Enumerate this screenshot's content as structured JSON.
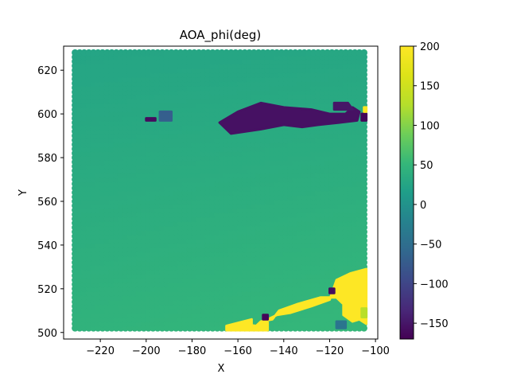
{
  "chart_data": {
    "type": "heatmap",
    "title": "AOA_phi(deg)",
    "xlabel": "X",
    "ylabel": "Y",
    "xlim": [
      -236,
      -99
    ],
    "ylim": [
      497,
      631
    ],
    "x_ticks": [
      -220,
      -200,
      -180,
      -160,
      -140,
      -120,
      -100
    ],
    "y_ticks": [
      500,
      520,
      540,
      560,
      580,
      600,
      620
    ],
    "x_tick_labels": [
      "−220",
      "−200",
      "−180",
      "−160",
      "−140",
      "−120",
      "−100"
    ],
    "y_tick_labels": [
      "500",
      "520",
      "540",
      "560",
      "580",
      "600",
      "620"
    ],
    "grid": false,
    "colormap": "viridis",
    "colorbar": {
      "range": [
        -170,
        200
      ],
      "ticks": [
        -150,
        -100,
        -50,
        0,
        50,
        100,
        150,
        200
      ],
      "tick_labels": [
        "−150",
        "−100",
        "−50",
        "0",
        "50",
        "100",
        "150",
        "200"
      ]
    },
    "grid_extent": {
      "x": [
        -231,
        -104
      ],
      "y": [
        502,
        629
      ],
      "step": 2
    },
    "background_field": {
      "description_values": {
        "top_left": 25,
        "top_right": 28,
        "bottom_left": 45,
        "bottom_right": 52
      }
    },
    "regions": [
      {
        "value": -155,
        "polygon": [
          [
            -160,
            601
          ],
          [
            -150,
            605
          ],
          [
            -140,
            603
          ],
          [
            -128,
            602
          ],
          [
            -120,
            600
          ],
          [
            -113,
            600
          ],
          [
            -110,
            603
          ],
          [
            -107,
            601
          ],
          [
            -108,
            597
          ],
          [
            -116,
            596
          ],
          [
            -125,
            595
          ],
          [
            -132,
            594
          ],
          [
            -140,
            595
          ],
          [
            -150,
            593
          ],
          [
            -163,
            591
          ],
          [
            -168,
            596
          ]
        ]
      },
      {
        "value": -150,
        "polygon": [
          [
            -118,
            605
          ],
          [
            -112,
            605
          ],
          [
            -110,
            602
          ],
          [
            -118,
            602
          ]
        ]
      },
      {
        "value": -70,
        "polygon": [
          [
            -194,
            601
          ],
          [
            -189,
            601
          ],
          [
            -189,
            597
          ],
          [
            -194,
            597
          ]
        ]
      },
      {
        "value": -160,
        "polygon": [
          [
            -200,
            598
          ],
          [
            -196,
            598
          ],
          [
            -196,
            597
          ],
          [
            -200,
            597
          ]
        ]
      },
      {
        "value": -165,
        "polygon": [
          [
            -106,
            600
          ],
          [
            -104,
            600
          ],
          [
            -104,
            597
          ],
          [
            -106,
            597
          ]
        ]
      },
      {
        "value": 195,
        "polygon": [
          [
            -105,
            603
          ],
          [
            -104,
            603
          ],
          [
            -104,
            601
          ],
          [
            -105,
            601
          ]
        ]
      },
      {
        "value": 200,
        "polygon": [
          [
            -104,
            529
          ],
          [
            -111,
            527
          ],
          [
            -117,
            524
          ],
          [
            -120,
            515
          ],
          [
            -128,
            512
          ],
          [
            -137,
            509
          ],
          [
            -143,
            508
          ],
          [
            -147,
            506
          ],
          [
            -147,
            501
          ],
          [
            -164,
            501
          ],
          [
            -160,
            504
          ],
          [
            -152,
            503
          ],
          [
            -150,
            505
          ],
          [
            -145,
            506
          ],
          [
            -142,
            510
          ],
          [
            -134,
            513
          ],
          [
            -124,
            516
          ],
          [
            -117,
            516
          ],
          [
            -114,
            513
          ],
          [
            -114,
            508
          ],
          [
            -110,
            505
          ],
          [
            -107,
            506
          ],
          [
            -104,
            504
          ]
        ]
      },
      {
        "value": 200,
        "polygon": [
          [
            -165,
            501
          ],
          [
            -154,
            501
          ],
          [
            -154,
            506
          ],
          [
            -165,
            503
          ]
        ]
      },
      {
        "value": 130,
        "polygon": [
          [
            -106,
            511
          ],
          [
            -104,
            511
          ],
          [
            -104,
            507
          ],
          [
            -106,
            507
          ]
        ]
      },
      {
        "value": -40,
        "polygon": [
          [
            -117,
            505
          ],
          [
            -113,
            505
          ],
          [
            -113,
            502
          ],
          [
            -117,
            502
          ]
        ]
      },
      {
        "value": -160,
        "polygon": [
          [
            -120,
            520
          ],
          [
            -118,
            520
          ],
          [
            -118,
            518
          ],
          [
            -120,
            518
          ]
        ]
      },
      {
        "value": -165,
        "polygon": [
          [
            -149,
            508
          ],
          [
            -147,
            508
          ],
          [
            -147,
            506
          ],
          [
            -149,
            506
          ]
        ]
      }
    ]
  }
}
